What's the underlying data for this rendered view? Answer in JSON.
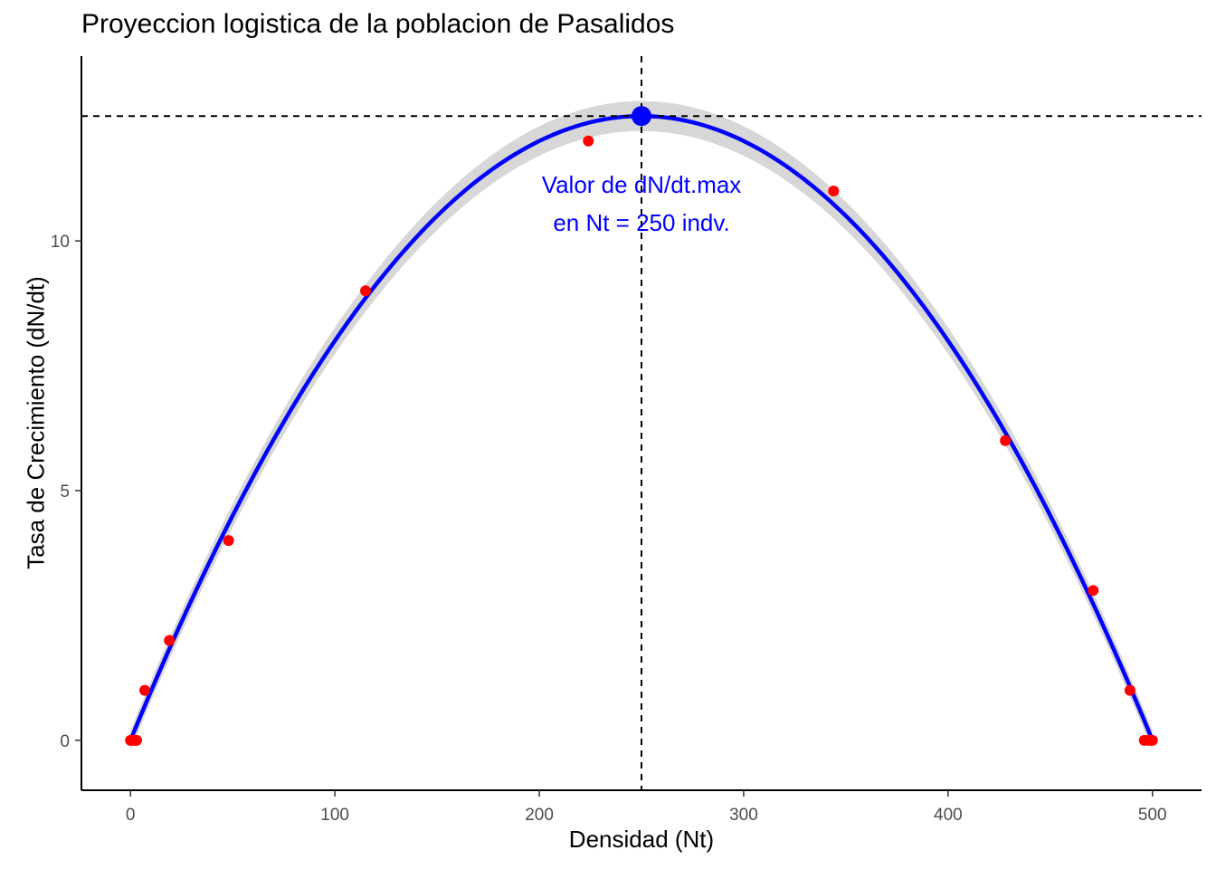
{
  "chart_data": {
    "type": "scatter",
    "title": "Proyeccion logistica de la poblacion de Pasalidos",
    "xlabel": "Densidad (Nt)",
    "ylabel": "Tasa de Crecimiento (dN/dt)",
    "xlim": [
      -24,
      524
    ],
    "ylim": [
      -1,
      13.7
    ],
    "x_ticks": [
      0,
      100,
      200,
      300,
      400,
      500
    ],
    "y_ticks": [
      0,
      5,
      10
    ],
    "grid": false,
    "legend": "none",
    "colors": {
      "points": "#ff0000",
      "curve": "#0000ff",
      "ribbon": "#d3d3d3",
      "max_point": "#0000ff",
      "reference_lines": "#000000"
    },
    "series": [
      {
        "kind": "points",
        "x": [
          0,
          1,
          2,
          3,
          7,
          19,
          48,
          115,
          224,
          344,
          428,
          471,
          489,
          496,
          498,
          499,
          500
        ],
        "y": [
          0,
          0,
          0,
          0,
          1,
          2,
          4,
          9,
          12,
          11,
          6,
          3,
          1,
          0,
          0,
          0,
          0
        ]
      },
      {
        "kind": "fitted_curve",
        "model": "quadratic",
        "coef": {
          "a": 0,
          "b": 0.1,
          "c": -0.0002
        },
        "x_range": [
          0,
          500
        ],
        "band_halfwidth_edge": 0.2,
        "band_halfwidth_peak": 0.3
      }
    ],
    "max_point": {
      "x": 250,
      "y": 12.5
    },
    "reference_lines": {
      "vertical_x": 250,
      "horizontal_y": 12.5,
      "style": "dashed"
    },
    "annotation": {
      "lines": [
        "Valor de dN/dt.max",
        "en Nt = 250 indv."
      ],
      "x": 250,
      "y": 11
    }
  }
}
